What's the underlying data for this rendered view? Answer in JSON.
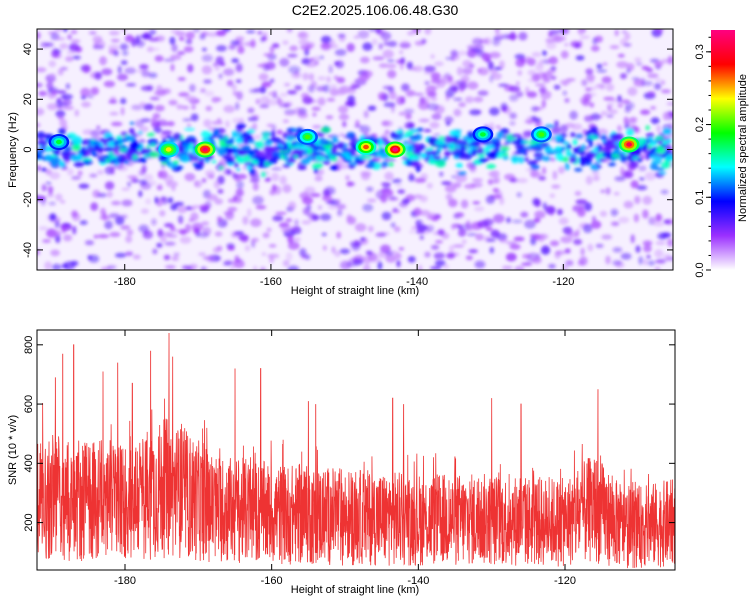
{
  "title": "C2E2.2025.106.06.48.G30",
  "chart_data": [
    {
      "type": "heatmap",
      "xlabel": "Height of straight line (km)",
      "ylabel": "Frequency (Hz)",
      "x_range": [
        -192,
        -105
      ],
      "y_range": [
        -48,
        48
      ],
      "xticks": [
        -180,
        -160,
        -140,
        -120
      ],
      "yticks": [
        -40,
        -20,
        0,
        20,
        40
      ],
      "colorbar": {
        "label": "Normalized spectral amplitude",
        "range": [
          0.0,
          0.33
        ],
        "ticks": [
          0.0,
          0.1,
          0.2,
          0.3
        ],
        "tick_labels": [
          "0.0",
          "0.1",
          "0.2",
          "0.3"
        ],
        "colormap": [
          "#ffffff",
          "#9b30ff",
          "#0000ff",
          "#00ffff",
          "#00ff00",
          "#ffff00",
          "#ff0000",
          "#ff0080"
        ]
      },
      "band": {
        "center_hz": 0,
        "half_width_hz": 6
      },
      "hotspots": [
        {
          "x": -169,
          "y": 0,
          "value": 0.32
        },
        {
          "x": -143,
          "y": 0,
          "value": 0.33
        },
        {
          "x": -111,
          "y": 2,
          "value": 0.31
        },
        {
          "x": -147,
          "y": 1,
          "value": 0.27
        },
        {
          "x": -174,
          "y": 0,
          "value": 0.24
        },
        {
          "x": -155,
          "y": 5,
          "value": 0.2
        },
        {
          "x": -123,
          "y": 6,
          "value": 0.2
        },
        {
          "x": -131,
          "y": 6,
          "value": 0.18
        },
        {
          "x": -189,
          "y": 3,
          "value": 0.18
        }
      ]
    },
    {
      "type": "line",
      "xlabel": "Height of straight line (km)",
      "ylabel": "SNR (10 * v/v)",
      "x_range": [
        -192,
        -105
      ],
      "y_range": [
        40,
        850
      ],
      "xticks": [
        -180,
        -160,
        -140,
        -120
      ],
      "yticks": [
        200,
        400,
        600,
        800
      ],
      "color": "#ee3333",
      "baseline": [
        {
          "x": -192,
          "y": 290
        },
        {
          "x": -180,
          "y": 270
        },
        {
          "x": -174,
          "y": 320
        },
        {
          "x": -168,
          "y": 250
        },
        {
          "x": -160,
          "y": 230
        },
        {
          "x": -150,
          "y": 220
        },
        {
          "x": -140,
          "y": 210
        },
        {
          "x": -130,
          "y": 210
        },
        {
          "x": -120,
          "y": 200
        },
        {
          "x": -116,
          "y": 250
        },
        {
          "x": -112,
          "y": 180
        },
        {
          "x": -105,
          "y": 200
        }
      ],
      "peaks": [
        {
          "x": -187,
          "y": 800
        },
        {
          "x": -188.5,
          "y": 770
        },
        {
          "x": -189.5,
          "y": 690
        },
        {
          "x": -183,
          "y": 710
        },
        {
          "x": -181,
          "y": 740
        },
        {
          "x": -179,
          "y": 670
        },
        {
          "x": -176.5,
          "y": 780
        },
        {
          "x": -174,
          "y": 840
        },
        {
          "x": -173.5,
          "y": 760
        },
        {
          "x": -165,
          "y": 720
        },
        {
          "x": -161.5,
          "y": 720
        },
        {
          "x": -155,
          "y": 610
        },
        {
          "x": -154,
          "y": 600
        },
        {
          "x": -143.5,
          "y": 620
        },
        {
          "x": -142,
          "y": 600
        },
        {
          "x": -130,
          "y": 620
        },
        {
          "x": -126,
          "y": 600
        },
        {
          "x": -115.5,
          "y": 650
        }
      ]
    }
  ]
}
